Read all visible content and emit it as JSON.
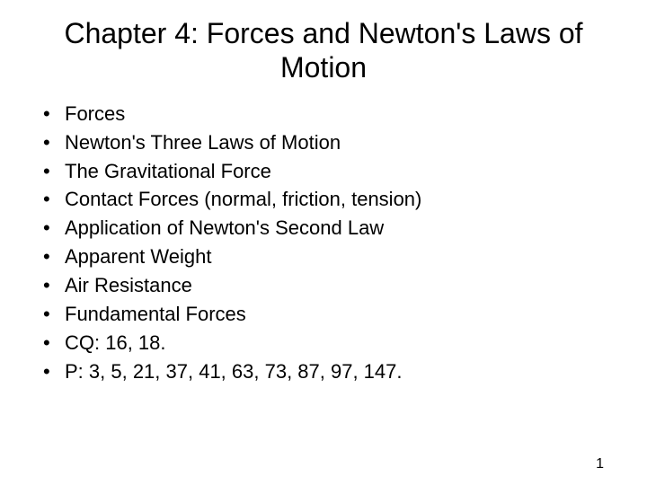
{
  "slide": {
    "title": "Chapter 4: Forces and Newton's Laws of Motion",
    "bullets": [
      "Forces",
      "Newton's Three Laws of Motion",
      "The Gravitational Force",
      "Contact Forces (normal, friction, tension)",
      "Application of Newton's Second Law",
      "Apparent Weight",
      "Air Resistance",
      "Fundamental Forces",
      "CQ: 16, 18.",
      "P: 3, 5, 21, 37, 41, 63, 73, 87, 97, 147."
    ],
    "page_number": "1",
    "background_color": "#ffffff",
    "text_color": "#000000",
    "title_fontsize": 32,
    "bullet_fontsize": 22,
    "pagenum_fontsize": 16
  }
}
